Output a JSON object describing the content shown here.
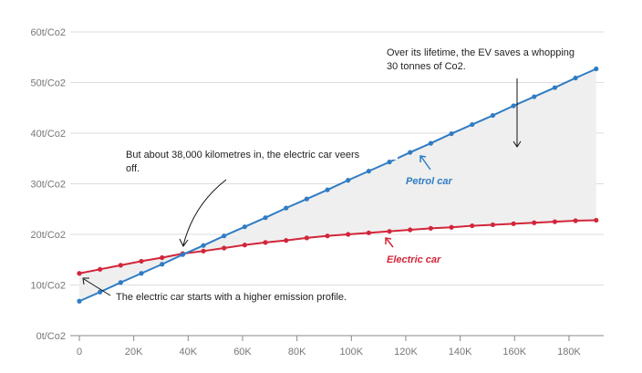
{
  "chart_data": {
    "type": "line",
    "title": "",
    "xlabel": "",
    "ylabel": "",
    "xlim": [
      0,
      190000
    ],
    "ylim": [
      0,
      60
    ],
    "x_ticks": [
      "0",
      "20K",
      "40K",
      "60K",
      "80K",
      "100K",
      "120K",
      "140K",
      "160K",
      "180K"
    ],
    "y_ticks": [
      "0t/Co2",
      "10t/Co2",
      "20t/Co2",
      "30t/Co2",
      "40t/Co2",
      "50t/Co2",
      "60t/Co2"
    ],
    "x": [
      0,
      7.6,
      15.2,
      22.8,
      30.4,
      38,
      45.6,
      53.2,
      60.8,
      68.4,
      76,
      83.6,
      91.2,
      98.8,
      106.4,
      114,
      121.6,
      129.2,
      136.8,
      144.4,
      152,
      159.6,
      167.2,
      174.8,
      182.4,
      190
    ],
    "x_unit": "thousand km",
    "series": [
      {
        "name": "Petrol car",
        "color": "#2f7cc4",
        "values": [
          6.8,
          8.6,
          10.5,
          12.3,
          14.1,
          16.0,
          17.8,
          19.7,
          21.5,
          23.3,
          25.2,
          27.0,
          28.8,
          30.7,
          32.5,
          34.3,
          36.2,
          38.0,
          39.9,
          41.7,
          43.5,
          45.4,
          47.2,
          49.0,
          50.9,
          52.7
        ]
      },
      {
        "name": "Electric car",
        "color": "#d2263a",
        "values": [
          12.3,
          13.1,
          13.9,
          14.7,
          15.4,
          16.2,
          16.7,
          17.3,
          17.9,
          18.4,
          18.8,
          19.3,
          19.7,
          20.0,
          20.3,
          20.6,
          20.9,
          21.2,
          21.4,
          21.7,
          21.9,
          22.1,
          22.3,
          22.5,
          22.7,
          22.8
        ]
      }
    ],
    "grid": true,
    "annotations": {
      "lifetime": [
        "Over its lifetime, the EV saves a whopping",
        "30 tonnes of Co2."
      ],
      "veers": [
        "But about 38,000 kilometres in, the electric car veers",
        "off."
      ],
      "start": "The electric car starts with a higher emission profile."
    }
  }
}
